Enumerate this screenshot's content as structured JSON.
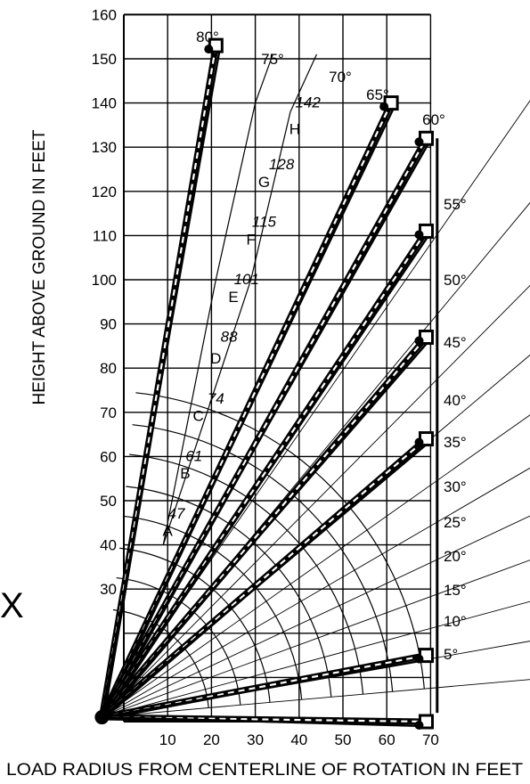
{
  "chart_data": {
    "type": "line",
    "title": "",
    "xlabel": "LOAD RADIUS FROM CENTERLINE OF ROTATION IN FEET",
    "ylabel": "HEIGHT ABOVE GROUND IN FEET",
    "xlim": [
      -5,
      70
    ],
    "ylim": [
      0,
      160
    ],
    "x_ticks": [
      10,
      20,
      30,
      40,
      50,
      60,
      70
    ],
    "y_ticks": [
      30,
      40,
      50,
      60,
      70,
      80,
      90,
      100,
      110,
      120,
      130,
      140,
      150,
      160
    ],
    "grid": true,
    "pivot": {
      "x": -5,
      "y": 1
    },
    "boom_lengths_ft": [
      47,
      61,
      74,
      88,
      101,
      115,
      128,
      142
    ],
    "working_range_zones": [
      {
        "zone": "A",
        "boom_length": "47"
      },
      {
        "zone": "B",
        "boom_length": "61"
      },
      {
        "zone": "C",
        "boom_length": "74"
      },
      {
        "zone": "D",
        "boom_length": "88"
      },
      {
        "zone": "E",
        "boom_length": "101"
      },
      {
        "zone": "F",
        "boom_length": "115"
      },
      {
        "zone": "G",
        "boom_length": "128"
      },
      {
        "zone": "H",
        "boom_length": "142"
      }
    ],
    "zone_length_labels": [
      "47",
      "61",
      "74",
      "88",
      "101",
      "115",
      "128",
      "142"
    ],
    "zone_letters": [
      "A",
      "B",
      "C",
      "D",
      "E",
      "F",
      "G",
      "H"
    ],
    "boom_angle_labels_upper": [
      "80°",
      "75°",
      "70°",
      "65°",
      "60°"
    ],
    "boom_angle_labels_right": [
      "55°",
      "50°",
      "45°",
      "40°",
      "35°",
      "30°",
      "25°",
      "20°",
      "15°",
      "10°",
      "5°"
    ],
    "series": [
      {
        "angle": "80°",
        "tip": {
          "x": 21,
          "y": 153
        }
      },
      {
        "angle": "65°",
        "tip": {
          "x": 61,
          "y": 140
        }
      },
      {
        "angle": "60°",
        "tip": {
          "x": 69,
          "y": 132
        }
      },
      {
        "angle": "50°",
        "tip": {
          "x": 69,
          "y": 111
        }
      },
      {
        "angle": "40°",
        "tip": {
          "x": 69,
          "y": 87
        }
      },
      {
        "angle": "30°",
        "tip": {
          "x": 69,
          "y": 64
        }
      },
      {
        "angle": "10°",
        "tip": {
          "x": 69,
          "y": 15
        }
      },
      {
        "angle": "0°",
        "tip": {
          "x": 69,
          "y": 0
        }
      }
    ]
  },
  "side_mark": "X"
}
